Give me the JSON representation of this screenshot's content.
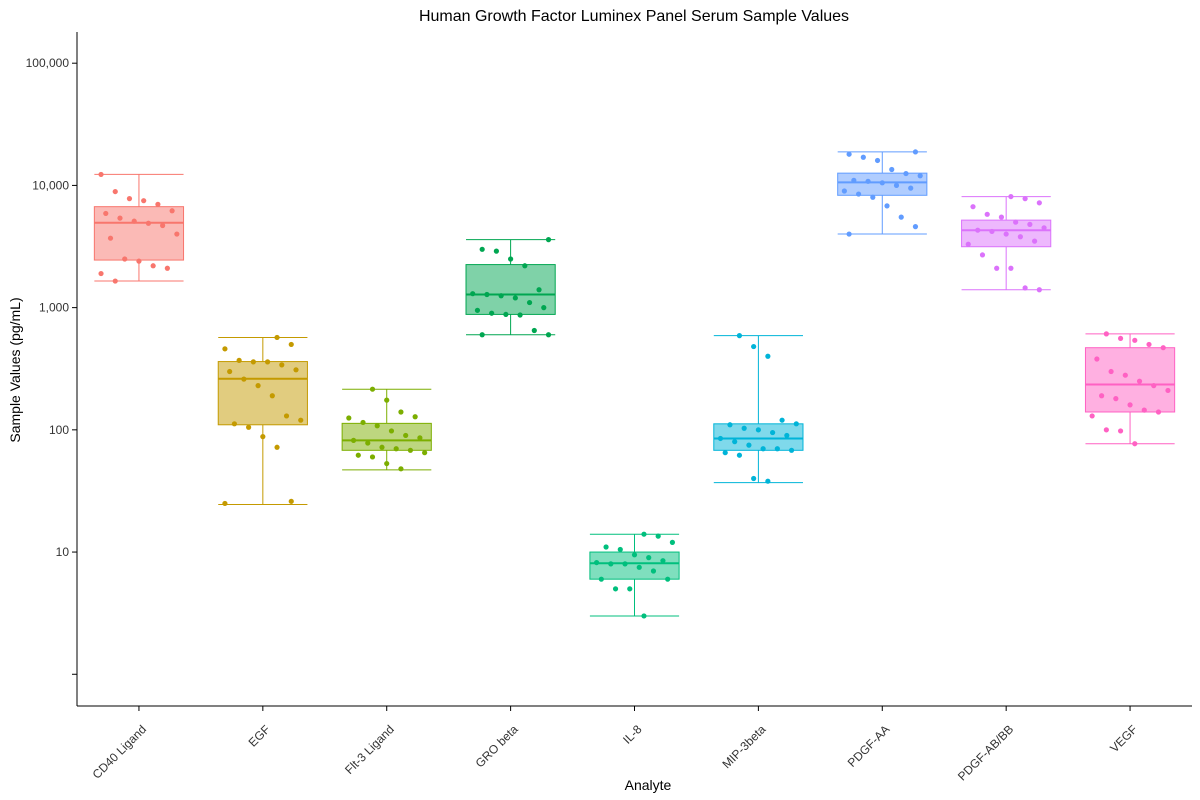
{
  "chart_data": {
    "type": "boxplot",
    "title": "Human Growth Factor Luminex Panel Serum Sample Values",
    "xlabel": "Analyte",
    "ylabel": "Sample Values (pg/mL)",
    "y_scale": "log10",
    "ylim": [
      0.55,
      180000
    ],
    "y_ticks": [
      10,
      100,
      1000,
      10000,
      100000
    ],
    "y_tick_labels": [
      "10",
      "100",
      "1,000",
      "10,000",
      "100,000"
    ],
    "grid": false,
    "legend": "none",
    "categories": [
      "CD40 Ligand",
      "EGF",
      "Flt-3 Ligand",
      "GRO beta",
      "IL-8",
      "MIP-3beta",
      "PDGF-AA",
      "PDGF-AB/BB",
      "VEGF"
    ],
    "series": [
      {
        "color": "#F8766D",
        "min": 1650,
        "q1": 2450,
        "median": 4950,
        "q3": 6700,
        "max": 12300,
        "points": [
          12300,
          8900,
          7800,
          7500,
          7000,
          6200,
          5900,
          5400,
          5100,
          4900,
          4700,
          4000,
          3700,
          2500,
          2400,
          2200,
          2100,
          1900,
          1650
        ]
      },
      {
        "color": "#C49A00",
        "min": 24.5,
        "q1": 110,
        "median": 262,
        "q3": 362,
        "max": 570,
        "points": [
          570,
          500,
          460,
          370,
          360,
          360,
          340,
          310,
          300,
          260,
          230,
          190,
          130,
          120,
          112,
          105,
          88,
          72,
          26,
          25
        ]
      },
      {
        "color": "#7CAE00",
        "min": 47,
        "q1": 68,
        "median": 82,
        "q3": 113,
        "max": 215,
        "points": [
          215,
          175,
          140,
          128,
          125,
          115,
          108,
          98,
          90,
          86,
          82,
          78,
          72,
          70,
          68,
          65,
          62,
          60,
          53,
          48
        ]
      },
      {
        "color": "#00A651",
        "min": 600,
        "q1": 880,
        "median": 1280,
        "q3": 2250,
        "max": 3600,
        "points": [
          3600,
          3000,
          2900,
          2500,
          2200,
          1400,
          1300,
          1280,
          1250,
          1200,
          1100,
          1000,
          950,
          900,
          880,
          870,
          650,
          600,
          600
        ]
      },
      {
        "color": "#00BF7D",
        "min": 3,
        "q1": 6,
        "median": 8.1,
        "q3": 10,
        "max": 14,
        "points": [
          14,
          13.5,
          12,
          11,
          10.5,
          9.5,
          9,
          8.5,
          8.2,
          8,
          8,
          7.5,
          7,
          6,
          6,
          5,
          5,
          3
        ]
      },
      {
        "color": "#00B4D8",
        "min": 37,
        "q1": 68,
        "median": 85,
        "q3": 112,
        "max": 590,
        "points": [
          590,
          480,
          400,
          120,
          112,
          110,
          103,
          100,
          95,
          90,
          85,
          80,
          75,
          70,
          70,
          68,
          65,
          62,
          40,
          38
        ]
      },
      {
        "color": "#619CFF",
        "min": 4000,
        "q1": 8300,
        "median": 10600,
        "q3": 12600,
        "max": 18800,
        "points": [
          18800,
          18000,
          17000,
          16000,
          13500,
          12500,
          12000,
          11000,
          10800,
          10500,
          10000,
          9500,
          9000,
          8500,
          8000,
          6800,
          5500,
          4600,
          4000
        ]
      },
      {
        "color": "#DB72FB",
        "min": 1400,
        "q1": 3150,
        "median": 4300,
        "q3": 5200,
        "max": 8100,
        "points": [
          8100,
          7800,
          7200,
          6700,
          5800,
          5500,
          5000,
          4800,
          4500,
          4300,
          4200,
          4000,
          3800,
          3500,
          3300,
          2700,
          2100,
          2100,
          1450,
          1400
        ]
      },
      {
        "color": "#FF61C3",
        "min": 77,
        "q1": 140,
        "median": 235,
        "q3": 470,
        "max": 610,
        "points": [
          610,
          560,
          540,
          500,
          470,
          380,
          300,
          280,
          250,
          230,
          210,
          190,
          180,
          160,
          145,
          140,
          130,
          100,
          98,
          77
        ]
      }
    ]
  }
}
